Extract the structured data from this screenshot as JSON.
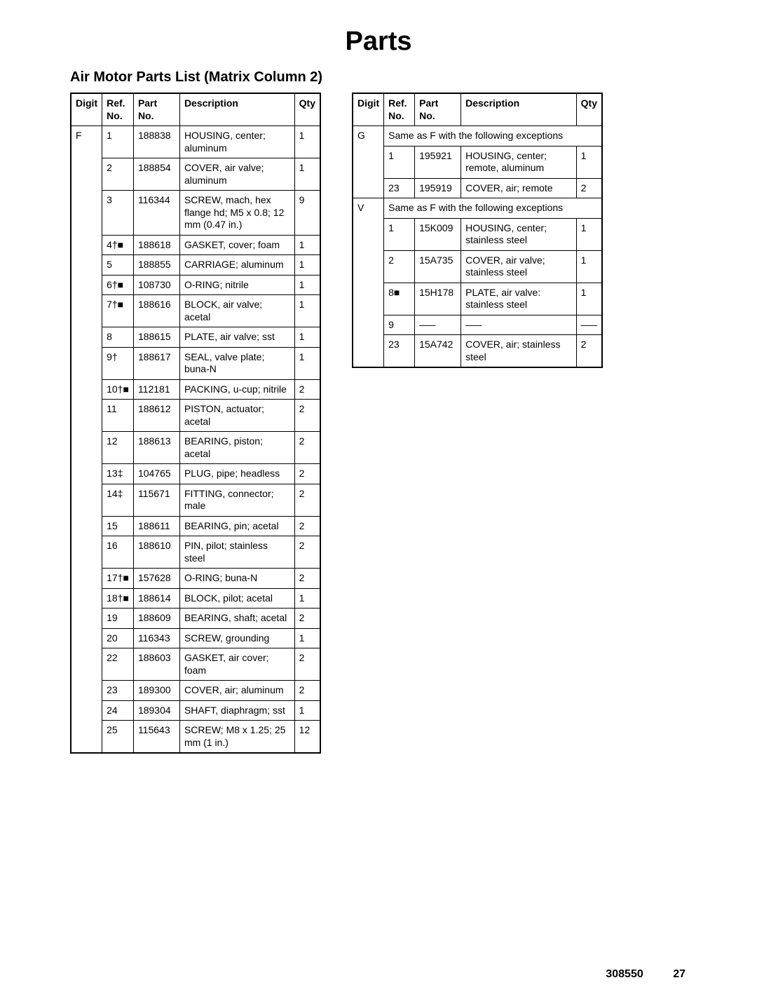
{
  "page": {
    "title": "Parts",
    "section_title": "Air Motor Parts List (Matrix Column 2)",
    "doc_number": "308550",
    "page_number": "27"
  },
  "headers": {
    "digit": "Digit",
    "ref": "Ref. No.",
    "part": "Part No.",
    "desc": "Description",
    "qty": "Qty"
  },
  "left": {
    "digit": "F",
    "rows": [
      {
        "ref": "1",
        "part": "188838",
        "desc": "HOUSING, center; aluminum",
        "qty": "1"
      },
      {
        "ref": "2",
        "part": "188854",
        "desc": "COVER, air valve; aluminum",
        "qty": "1"
      },
      {
        "ref": "3",
        "part": "116344",
        "desc": "SCREW, mach, hex flange hd; M5 x 0.8; 12 mm (0.47 in.)",
        "qty": "9"
      },
      {
        "ref": "4†■",
        "part": "188618",
        "desc": "GASKET, cover;  foam",
        "qty": "1"
      },
      {
        "ref": "5",
        "part": "188855",
        "desc": "CARRIAGE; aluminum",
        "qty": "1"
      },
      {
        "ref": "6†■",
        "part": "108730",
        "desc": "O-RING; nitrile",
        "qty": "1"
      },
      {
        "ref": "7†■",
        "part": "188616",
        "desc": "BLOCK, air valve; acetal",
        "qty": "1"
      },
      {
        "ref": "8",
        "part": "188615",
        "desc": "PLATE, air valve; sst",
        "qty": "1"
      },
      {
        "ref": "9†",
        "part": "188617",
        "desc": "SEAL, valve plate; buna-N",
        "qty": "1"
      },
      {
        "ref": "10†■",
        "part": "112181",
        "desc": "PACKING, u-cup; nitrile",
        "qty": "2"
      },
      {
        "ref": "11",
        "part": "188612",
        "desc": "PISTON, actuator; acetal",
        "qty": "2"
      },
      {
        "ref": "12",
        "part": "188613",
        "desc": "BEARING, piston; acetal",
        "qty": "2"
      },
      {
        "ref": "13‡",
        "part": "104765",
        "desc": "PLUG, pipe; headless",
        "qty": "2"
      },
      {
        "ref": "14‡",
        "part": "115671",
        "desc": "FITTING, connector; male",
        "qty": "2"
      },
      {
        "ref": "15",
        "part": "188611",
        "desc": "BEARING, pin; acetal",
        "qty": "2"
      },
      {
        "ref": "16",
        "part": "188610",
        "desc": "PIN, pilot; stainless steel",
        "qty": "2"
      },
      {
        "ref": "17†■",
        "part": "157628",
        "desc": "O-RING; buna-N",
        "qty": "2"
      },
      {
        "ref": "18†■",
        "part": "188614",
        "desc": "BLOCK, pilot; acetal",
        "qty": "1"
      },
      {
        "ref": "19",
        "part": "188609",
        "desc": "BEARING, shaft; acetal",
        "qty": "2"
      },
      {
        "ref": "20",
        "part": "116343",
        "desc": "SCREW, grounding",
        "qty": "1"
      },
      {
        "ref": "22",
        "part": "188603",
        "desc": "GASKET, air cover;  foam",
        "qty": "2"
      },
      {
        "ref": "23",
        "part": "189300",
        "desc": "COVER, air; aluminum",
        "qty": "2"
      },
      {
        "ref": "24",
        "part": "189304",
        "desc": "SHAFT, diaphragm; sst",
        "qty": "1"
      },
      {
        "ref": "25",
        "part": "115643",
        "desc": "SCREW; M8 x 1.25; 25 mm (1 in.)",
        "qty": "12"
      }
    ]
  },
  "right": {
    "groups": [
      {
        "digit": "G",
        "note": "Same as F with the following exceptions",
        "rows": [
          {
            "ref": "1",
            "part": "195921",
            "desc": "HOUSING, center; remote, aluminum",
            "qty": "1"
          },
          {
            "ref": "23",
            "part": "195919",
            "desc": "COVER, air; remote",
            "qty": "2"
          }
        ]
      },
      {
        "digit": "V",
        "note": "Same as F with the following exceptions",
        "rows": [
          {
            "ref": "1",
            "part": "15K009",
            "desc": "HOUSING, center; stainless steel",
            "qty": "1"
          },
          {
            "ref": "2",
            "part": "15A735",
            "desc": "COVER, air valve; stainless steel",
            "qty": "1"
          },
          {
            "ref": "8■",
            "part": "15H178",
            "desc": "PLATE, air valve: stainless steel",
            "qty": "1"
          },
          {
            "ref": "9",
            "part": "–––",
            "desc": "–––",
            "qty": "–––"
          },
          {
            "ref": "23",
            "part": "15A742",
            "desc": "COVER, air; stainless steel",
            "qty": "2"
          }
        ]
      }
    ]
  },
  "style": {
    "border_color": "#000000",
    "background_color": "#ffffff",
    "text_color": "#000000",
    "title_fontsize": 38,
    "section_fontsize": 20,
    "table_fontsize": 14,
    "footer_fontsize": 16
  }
}
